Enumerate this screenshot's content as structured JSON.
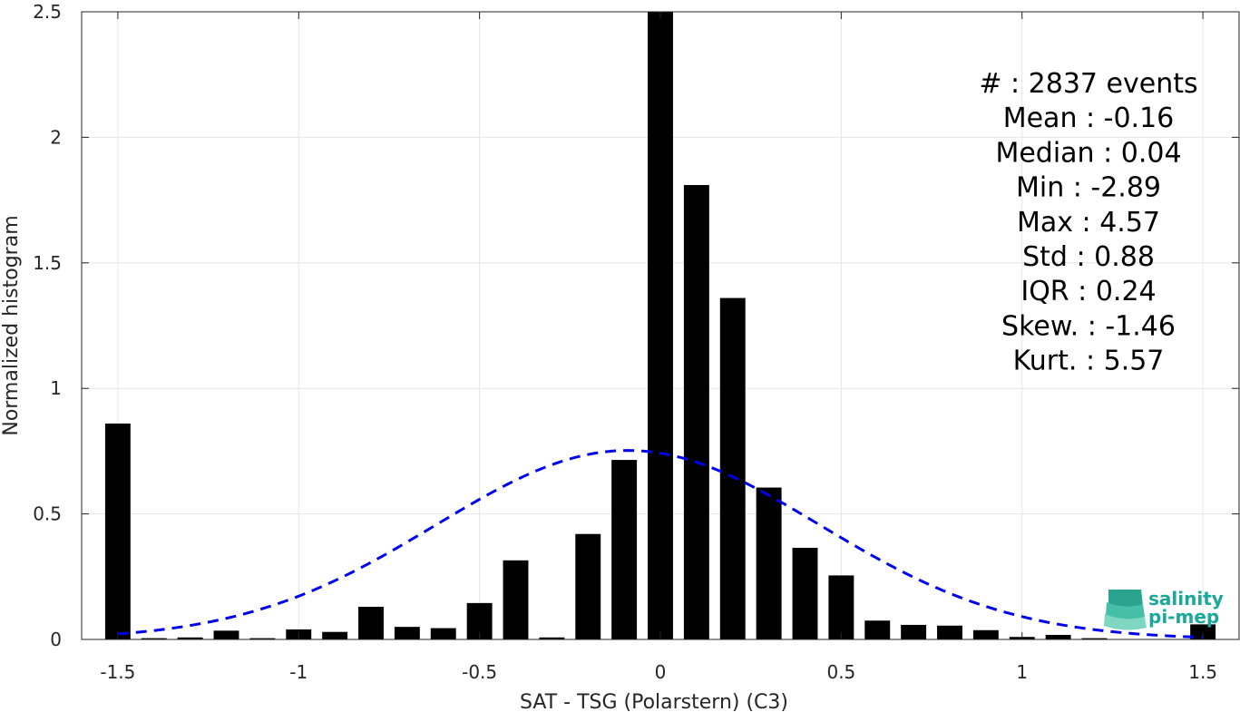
{
  "chart_data": {
    "type": "bar",
    "xlabel": "SAT - TSG (Polarstern) (C3)",
    "ylabel": "Normalized histogram",
    "xlim": [
      -1.6,
      1.6
    ],
    "ylim": [
      0,
      2.5
    ],
    "grid": true,
    "x_ticks": [
      -1.5,
      -1,
      -0.5,
      0,
      0.5,
      1,
      1.5
    ],
    "x_tick_labels": [
      "-1.5",
      "-1",
      "-0.5",
      "0",
      "0.5",
      "1",
      "1.5"
    ],
    "y_ticks": [
      0,
      0.5,
      1,
      1.5,
      2,
      2.5
    ],
    "y_tick_labels": [
      "0",
      "0.5",
      "1",
      "1.5",
      "2",
      "2.5"
    ],
    "bar_width": 0.07,
    "bars": {
      "x": [
        -1.5,
        -1.4,
        -1.3,
        -1.2,
        -1.1,
        -1.0,
        -0.9,
        -0.8,
        -0.7,
        -0.6,
        -0.5,
        -0.4,
        -0.3,
        -0.2,
        -0.1,
        0.0,
        0.1,
        0.2,
        0.3,
        0.4,
        0.5,
        0.6,
        0.7,
        0.8,
        0.9,
        1.0,
        1.1,
        1.2,
        1.3,
        1.4,
        1.5
      ],
      "values": [
        0.86,
        0.005,
        0.008,
        0.035,
        0.005,
        0.04,
        0.03,
        0.13,
        0.05,
        0.045,
        0.145,
        0.315,
        0.008,
        0.42,
        0.715,
        2.5,
        1.81,
        1.36,
        0.605,
        0.365,
        0.255,
        0.075,
        0.058,
        0.055,
        0.037,
        0.01,
        0.018,
        0.005,
        0.0,
        0.0,
        0.06
      ],
      "color": "#000000"
    },
    "fit_curve": {
      "style": "dashed",
      "color": "#0000ee",
      "mean": -0.09,
      "std": 0.53,
      "x_range": [
        -1.5,
        1.5
      ]
    }
  },
  "stats": [
    {
      "label": "#  :",
      "value": "2837 events"
    },
    {
      "label": "Mean :",
      "value": "-0.16"
    },
    {
      "label": "Median :",
      "value": "0.04"
    },
    {
      "label": "Min :",
      "value": "-2.89"
    },
    {
      "label": "Max :",
      "value": "4.57"
    },
    {
      "label": "Std :",
      "value": "0.88"
    },
    {
      "label": "IQR :",
      "value": "0.24"
    },
    {
      "label": "Skew. :",
      "value": "-1.46"
    },
    {
      "label": "Kurt. :",
      "value": "5.57"
    }
  ],
  "logo": {
    "line1": "salinity",
    "line2": "pi-mep",
    "color": "#1aa89a"
  }
}
